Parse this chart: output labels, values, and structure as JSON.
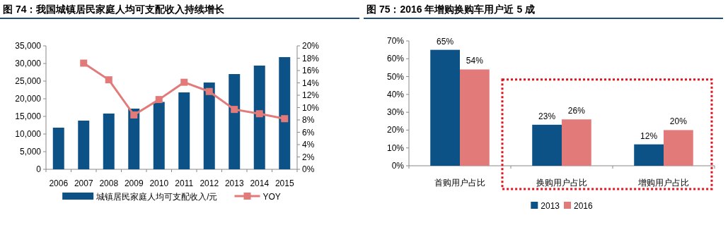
{
  "chart_data": [
    {
      "type": "bar",
      "title": "图 74：我国城镇居民家庭人均可支配收入持续增长",
      "categories": [
        "2006",
        "2007",
        "2008",
        "2009",
        "2010",
        "2011",
        "2012",
        "2013",
        "2014",
        "2015"
      ],
      "series": [
        {
          "name": "城镇居民家庭人均可支配收入/元",
          "type": "bar",
          "color": "#0d5287",
          "values": [
            11800,
            13800,
            15800,
            17200,
            19100,
            21800,
            24600,
            27000,
            29400,
            31800
          ]
        },
        {
          "name": "YOY",
          "type": "line",
          "axis": "y2",
          "color": "#e37a7a",
          "marker": "square",
          "values": [
            null,
            17.2,
            14.5,
            8.8,
            11.3,
            14.1,
            12.6,
            9.7,
            9.0,
            8.2
          ]
        }
      ],
      "ylim": [
        0,
        35000
      ],
      "yticks": [
        {
          "value": 0,
          "label": "0"
        },
        {
          "value": 5000,
          "label": "5,000"
        },
        {
          "value": 10000,
          "label": "10,000"
        },
        {
          "value": 15000,
          "label": "15,000"
        },
        {
          "value": 20000,
          "label": "20,000"
        },
        {
          "value": 25000,
          "label": "25,000"
        },
        {
          "value": 30000,
          "label": "30,000"
        },
        {
          "value": 35000,
          "label": "35,000"
        }
      ],
      "y2lim": [
        0,
        20
      ],
      "y2ticks": [
        {
          "value": 0,
          "label": "0%"
        },
        {
          "value": 2,
          "label": "2%"
        },
        {
          "value": 4,
          "label": "4%"
        },
        {
          "value": 6,
          "label": "6%"
        },
        {
          "value": 8,
          "label": "8%"
        },
        {
          "value": 10,
          "label": "10%"
        },
        {
          "value": 12,
          "label": "12%"
        },
        {
          "value": 14,
          "label": "14%"
        },
        {
          "value": 16,
          "label": "16%"
        },
        {
          "value": 18,
          "label": "18%"
        },
        {
          "value": 20,
          "label": "20%"
        }
      ],
      "legend": "bottom"
    },
    {
      "type": "bar",
      "title": "图 75：2016 年增购换购车用户近 5 成",
      "categories": [
        "首购用户占比",
        "换购用户占比",
        "增购用户占比"
      ],
      "series": [
        {
          "name": "2013",
          "color": "#0d5287",
          "values": [
            65,
            23,
            12
          ],
          "value_labels": [
            "65%",
            "23%",
            "12%"
          ]
        },
        {
          "name": "2016",
          "color": "#e37a7a",
          "values": [
            54,
            26,
            20
          ],
          "value_labels": [
            "54%",
            "26%",
            "20%"
          ]
        }
      ],
      "ylim": [
        0,
        70
      ],
      "yticks": [
        {
          "value": 0,
          "label": "0%"
        },
        {
          "value": 10,
          "label": "10%"
        },
        {
          "value": 20,
          "label": "20%"
        },
        {
          "value": 30,
          "label": "30%"
        },
        {
          "value": 40,
          "label": "40%"
        },
        {
          "value": 50,
          "label": "50%"
        },
        {
          "value": 60,
          "label": "60%"
        },
        {
          "value": 70,
          "label": "70%"
        }
      ],
      "legend": "bottom"
    }
  ]
}
